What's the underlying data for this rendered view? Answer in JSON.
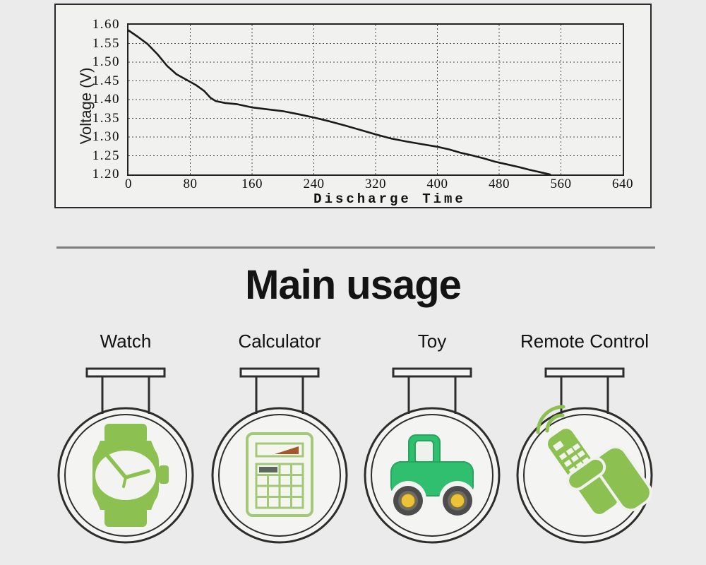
{
  "chart_data": {
    "type": "line",
    "title": "",
    "xlabel": "Discharge Time",
    "ylabel": "Voltage (V)",
    "xlim": [
      0,
      640
    ],
    "ylim": [
      1.2,
      1.6
    ],
    "x_ticks": [
      0,
      80,
      160,
      240,
      320,
      400,
      480,
      560,
      640
    ],
    "y_ticks": [
      1.6,
      1.55,
      1.5,
      1.45,
      1.4,
      1.35,
      1.3,
      1.25,
      1.2
    ],
    "grid": "dotted",
    "legend": "none",
    "series": [
      {
        "name": "discharge-curve",
        "points": [
          [
            0,
            1.585
          ],
          [
            12,
            1.568
          ],
          [
            25,
            1.548
          ],
          [
            38,
            1.52
          ],
          [
            50,
            1.49
          ],
          [
            62,
            1.468
          ],
          [
            75,
            1.453
          ],
          [
            88,
            1.438
          ],
          [
            98,
            1.423
          ],
          [
            106,
            1.405
          ],
          [
            113,
            1.396
          ],
          [
            125,
            1.391
          ],
          [
            140,
            1.388
          ],
          [
            160,
            1.379
          ],
          [
            180,
            1.374
          ],
          [
            200,
            1.369
          ],
          [
            220,
            1.361
          ],
          [
            240,
            1.352
          ],
          [
            260,
            1.342
          ],
          [
            280,
            1.331
          ],
          [
            300,
            1.319
          ],
          [
            320,
            1.307
          ],
          [
            340,
            1.296
          ],
          [
            360,
            1.288
          ],
          [
            380,
            1.281
          ],
          [
            400,
            1.274
          ],
          [
            415,
            1.267
          ],
          [
            430,
            1.258
          ],
          [
            445,
            1.251
          ],
          [
            460,
            1.243
          ],
          [
            475,
            1.234
          ],
          [
            490,
            1.227
          ],
          [
            505,
            1.22
          ],
          [
            520,
            1.212
          ],
          [
            535,
            1.205
          ],
          [
            546,
            1.2
          ]
        ]
      }
    ]
  },
  "usage": {
    "title": "Main usage",
    "items": [
      {
        "label": "Watch",
        "icon": "watch-icon"
      },
      {
        "label": "Calculator",
        "icon": "calculator-icon"
      },
      {
        "label": "Toy",
        "icon": "toy-truck-icon"
      },
      {
        "label": "Remote Control",
        "icon": "remote-control-icon"
      }
    ]
  },
  "colors": {
    "bg": "#ebebeb",
    "panel": "#f1f1ef",
    "frame_border": "#2a2a2a",
    "divider": "#7c7c7c",
    "line_color": "#1a1a1a",
    "grid_color": "#4a4a4a",
    "icon_green": "#8cc152",
    "calc_green": "#a3c878",
    "key_dark": "#5c6a5e",
    "display_orange": "#a5562b",
    "truck_green": "#2fbf6f",
    "truck_outline": "#27a55e",
    "wheel_yellow": "#ecc338"
  }
}
